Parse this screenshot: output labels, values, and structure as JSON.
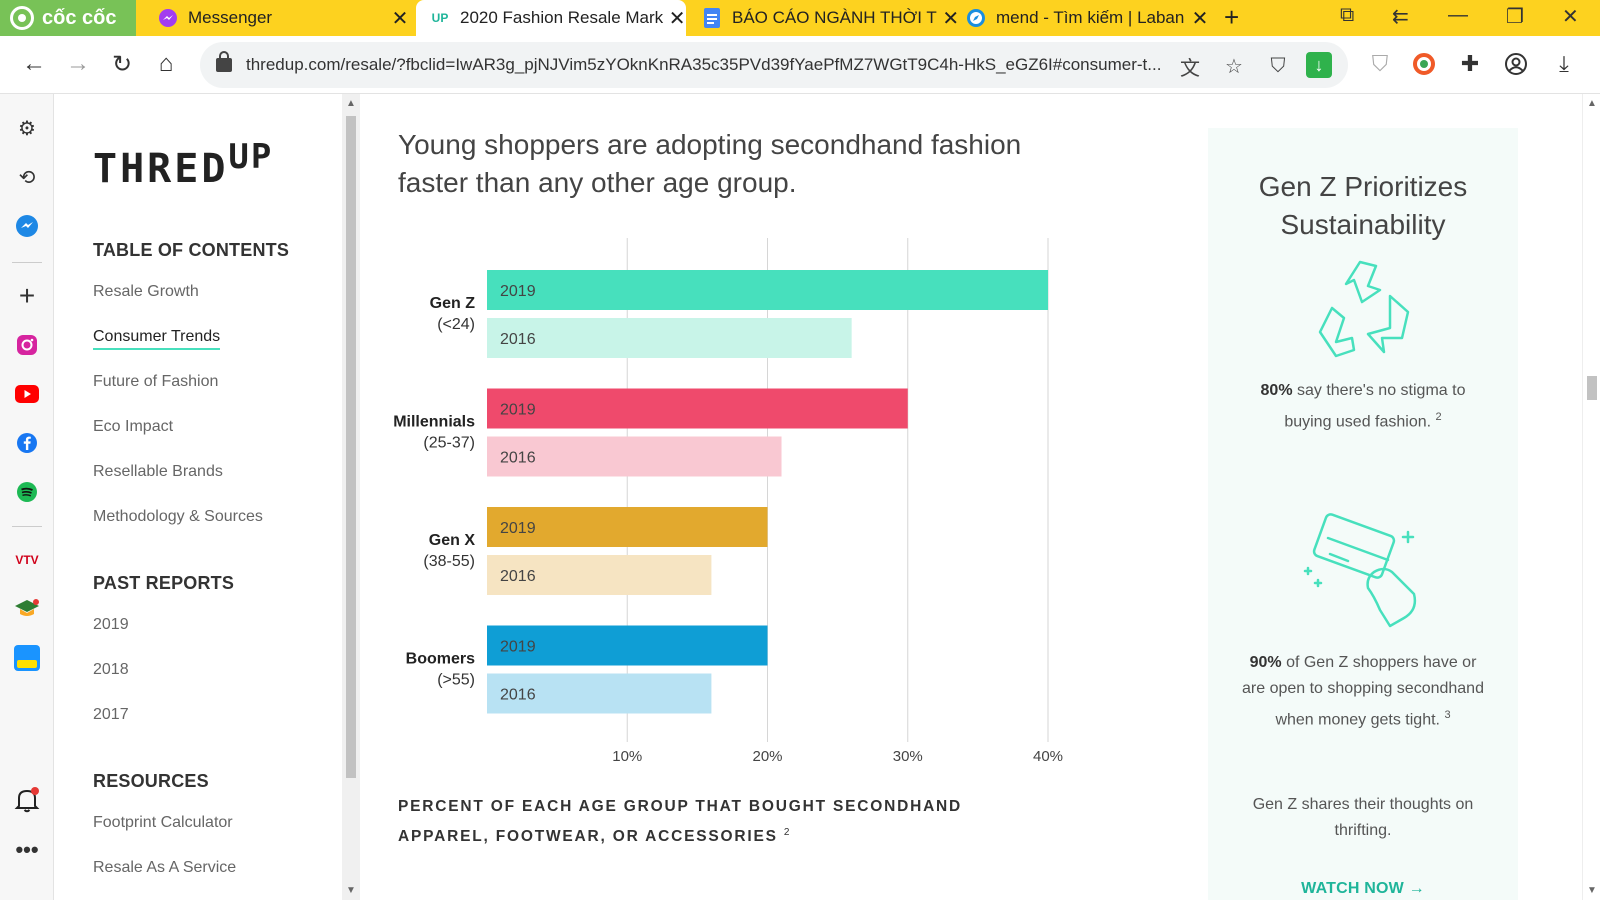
{
  "browser": {
    "brand": "cốc cốc",
    "tabs": [
      {
        "title": "Messenger",
        "favicon": "messenger-icon"
      },
      {
        "title": "2020 Fashion Resale Mark",
        "favicon": "thredup-icon",
        "active": true,
        "fav_text": "UP"
      },
      {
        "title": "BÁO CÁO NGÀNH THỜI T",
        "favicon": "docs-icon"
      },
      {
        "title": "mend - Tìm kiếm | Laban",
        "favicon": "compass-icon"
      }
    ],
    "url": "thredup.com/resale/?fbclid=IwAR3g_pjNJVim5zYOknKnRA35c35PVd39fYaePfMZ7WGtT9C4h-HkS_eGZ6I#consumer-t..."
  },
  "toc": {
    "logo_main": "THRED",
    "logo_sup": "UP",
    "contents_heading": "TABLE OF CONTENTS",
    "contents": [
      "Resale Growth",
      "Consumer Trends",
      "Future of Fashion",
      "Eco Impact",
      "Resellable Brands",
      "Methodology & Sources"
    ],
    "active_index": 1,
    "past_heading": "PAST REPORTS",
    "past": [
      "2019",
      "2018",
      "2017"
    ],
    "resources_heading": "RESOURCES",
    "resources": [
      "Footprint Calculator",
      "Resale As A Service"
    ]
  },
  "main": {
    "headline": "Young shoppers are adopting secondhand fashion faster than any other age group.",
    "caption": "PERCENT OF EACH AGE GROUP THAT BOUGHT SECONDHAND APPAREL, FOOTWEAR, OR ACCESSORIES",
    "caption_ref": "2"
  },
  "chart_data": {
    "type": "bar",
    "orientation": "horizontal",
    "groups": [
      {
        "name": "Gen Z",
        "range": "(<24)",
        "bars": [
          {
            "label": "2019",
            "value": 40,
            "color": "#47e0bd"
          },
          {
            "label": "2016",
            "value": 26,
            "color": "#c8f4e8"
          }
        ]
      },
      {
        "name": "Millennials",
        "range": "(25-37)",
        "bars": [
          {
            "label": "2019",
            "value": 30,
            "color": "#ef4a6c"
          },
          {
            "label": "2016",
            "value": 21,
            "color": "#f9c8d2"
          }
        ]
      },
      {
        "name": "Gen X",
        "range": "(38-55)",
        "bars": [
          {
            "label": "2019",
            "value": 20,
            "color": "#e2a92e"
          },
          {
            "label": "2016",
            "value": 16,
            "color": "#f6e4c2"
          }
        ]
      },
      {
        "name": "Boomers",
        "range": "(>55)",
        "bars": [
          {
            "label": "2019",
            "value": 20,
            "color": "#0f9ed5"
          },
          {
            "label": "2016",
            "value": 16,
            "color": "#b8e2f3"
          }
        ]
      }
    ],
    "xticks": [
      "10%",
      "20%",
      "30%",
      "40%"
    ],
    "tick_values": [
      10,
      20,
      30,
      40
    ],
    "xlim": [
      0,
      40
    ],
    "grid": true
  },
  "panel": {
    "title": "Gen Z Prioritizes Sustainability",
    "stat1_bold": "80%",
    "stat1_text": " say there's no stigma to buying used fashion.",
    "stat1_ref": "2",
    "stat2_bold": "90%",
    "stat2_text": " of Gen Z shoppers have or are open to shopping secondhand when money gets tight.",
    "stat2_ref": "3",
    "promo": "Gen Z shares their thoughts on thrifting.",
    "cta": "WATCH NOW →",
    "accent": "#1fb59a"
  }
}
